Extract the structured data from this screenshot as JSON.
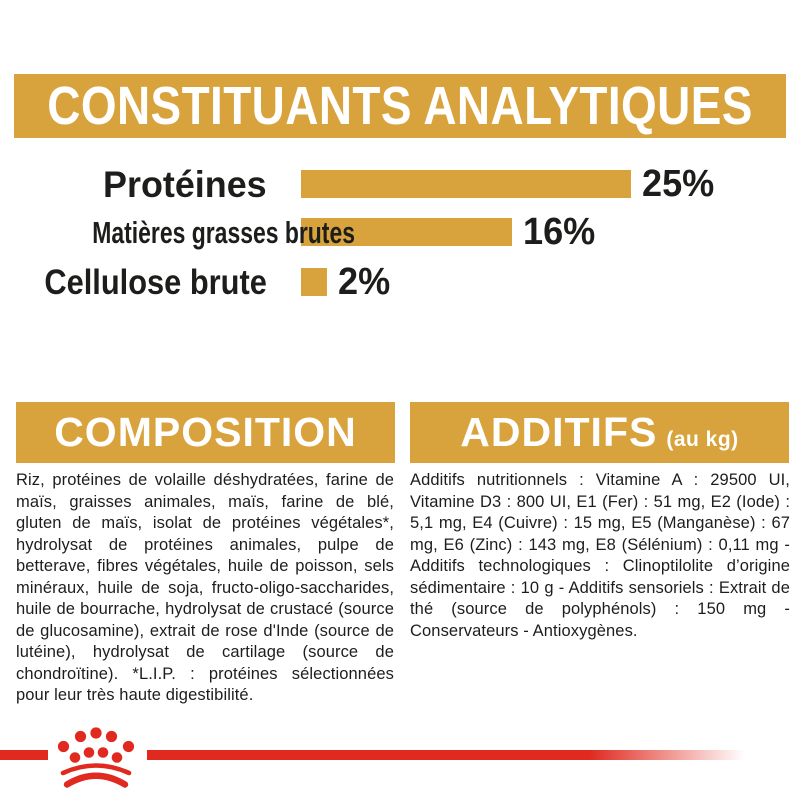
{
  "banner": {
    "title": "CONSTITUANTS ANALYTIQUES"
  },
  "chart_data": {
    "type": "bar",
    "orientation": "horizontal",
    "title": "CONSTITUANTS ANALYTIQUES",
    "categories": [
      "Protéines",
      "Matières grasses brutes",
      "Cellulose brute"
    ],
    "values": [
      25,
      16,
      2
    ],
    "value_labels": [
      "25%",
      "16%",
      "2%"
    ],
    "unit": "%",
    "xlim": [
      0,
      25
    ],
    "grid": false,
    "legend": false,
    "bar_color": "#D8A33C"
  },
  "sections": {
    "composition": {
      "title": "COMPOSITION",
      "body": "Riz, protéines de volaille déshydratées, farine de maïs, graisses animales, maïs, farine de blé, gluten de maïs, isolat de protéines végétales*, hydrolysat de protéines animales, pulpe de betterave, fibres végétales, huile de poisson, sels minéraux, huile de soja, fructo-oligo-saccharides, huile de bourrache, hydrolysat de crustacé (source de glucosamine), extrait de rose d'Inde (source de lutéine), hydrolysat de cartilage (source de chondroïtine). *L.I.P. : protéines sélectionnées pour leur très haute digestibilité."
    },
    "additifs": {
      "title": "ADDITIFS",
      "title_suffix": "(au kg)",
      "body": "Additifs nutritionnels : Vitamine A : 29500 UI, Vitamine D3 : 800 UI, E1 (Fer) : 51 mg, E2 (Iode) : 5,1 mg, E4 (Cuivre) : 15 mg, E5 (Manganèse) : 67 mg, E6 (Zinc) : 143 mg, E8 (Sélénium) : 0,11 mg - Additifs technologiques : Clinoptilolite d’origine sédimentaire : 10 g - Additifs sensoriels : Extrait de thé (source de polyphénols) : 150 mg - Conservateurs - Antioxygènes."
    }
  },
  "footer": {
    "logo": "royal-canin-crown-logo"
  },
  "colors": {
    "gold": "#D8A33C",
    "red": "#E02A20",
    "text": "#1D1D1B",
    "background": "#FFFFFF"
  }
}
